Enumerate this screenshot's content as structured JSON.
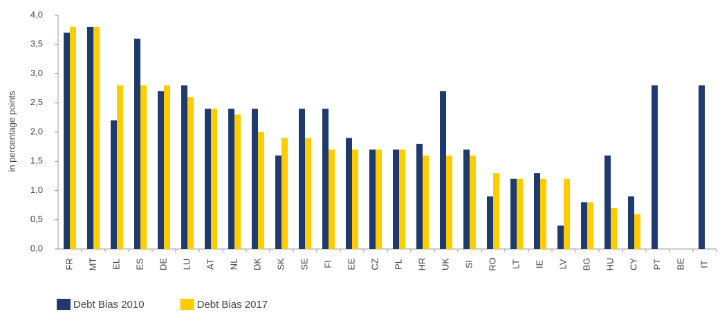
{
  "chart_data": {
    "type": "bar",
    "y_label": "in percentage points",
    "categories": [
      "FR",
      "MT",
      "EL",
      "ES",
      "DE",
      "LU",
      "AT",
      "NL",
      "DK",
      "SK",
      "SE",
      "FI",
      "EE",
      "CZ",
      "PL",
      "HR",
      "UK",
      "SI",
      "RO",
      "LT",
      "IE",
      "LV",
      "BG",
      "HU",
      "CY",
      "PT",
      "BE",
      "IT"
    ],
    "series": [
      {
        "name": "Debt Bias 2010",
        "color": "#1f3a6e",
        "values": [
          3.7,
          3.8,
          2.2,
          3.6,
          2.7,
          2.8,
          2.4,
          2.4,
          2.4,
          1.6,
          2.4,
          2.4,
          1.9,
          1.7,
          1.7,
          1.8,
          2.7,
          1.7,
          0.9,
          1.2,
          1.3,
          0.4,
          0.8,
          1.6,
          0.9,
          2.8,
          null,
          2.8
        ]
      },
      {
        "name": "Debt Bias 2017",
        "color": "#ffcc00",
        "values": [
          3.8,
          3.8,
          2.8,
          2.8,
          2.8,
          2.6,
          2.4,
          2.3,
          2.0,
          1.9,
          1.9,
          1.7,
          1.7,
          1.7,
          1.7,
          1.6,
          1.6,
          1.6,
          1.3,
          1.2,
          1.2,
          1.2,
          0.8,
          0.7,
          0.6,
          null,
          null,
          null
        ]
      }
    ],
    "ylim": [
      0,
      4
    ],
    "yticks": [
      {
        "value": 0,
        "label": "0,0"
      },
      {
        "value": 0.5,
        "label": "0,5"
      },
      {
        "value": 1,
        "label": "1,0"
      },
      {
        "value": 1.5,
        "label": "1,5"
      },
      {
        "value": 2,
        "label": "2,0"
      },
      {
        "value": 2.5,
        "label": "2,5"
      },
      {
        "value": 3,
        "label": "3,0"
      },
      {
        "value": 3.5,
        "label": "3,5"
      },
      {
        "value": 4,
        "label": "4,0"
      }
    ],
    "legend": "bottom-left"
  }
}
